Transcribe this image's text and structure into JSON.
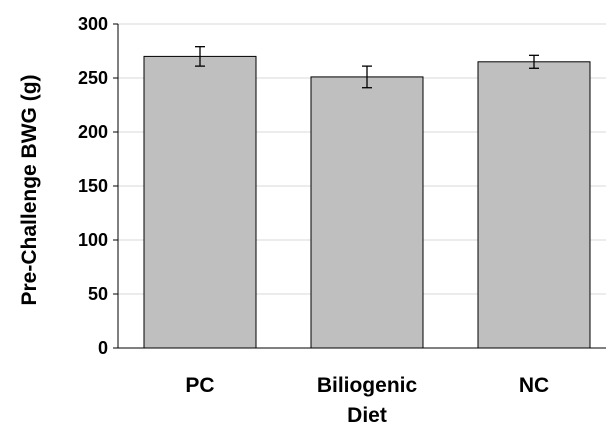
{
  "chart_data": {
    "type": "bar",
    "title": "",
    "xlabel": "",
    "ylabel": "Pre-Challenge BWG (g)",
    "categories": [
      "PC",
      "Biliogenic Diet",
      "NC"
    ],
    "category_lines": [
      [
        "PC"
      ],
      [
        "Biliogenic",
        "Diet"
      ],
      [
        "NC"
      ]
    ],
    "values": [
      270,
      251,
      265
    ],
    "error": [
      9,
      10,
      6
    ],
    "ylim": [
      0,
      300
    ],
    "yticks": [
      0,
      50,
      100,
      150,
      200,
      250,
      300
    ],
    "grid": true,
    "legend": "none",
    "colors": {
      "bar_fill": "#bfbfbf",
      "bar_stroke": "#000000",
      "grid": "#d9d9d9",
      "axis": "#000000"
    }
  }
}
